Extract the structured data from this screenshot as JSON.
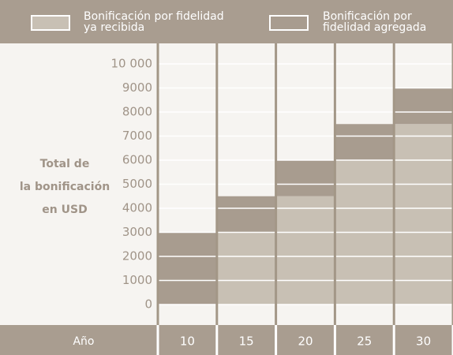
{
  "chart_data": {
    "type": "stacked_bar",
    "y_label": [
      "Total de",
      "la bonificación",
      "en USD"
    ],
    "x_label": "Año",
    "categories": [
      "10",
      "15",
      "20",
      "25",
      "30"
    ],
    "series": [
      {
        "name": "Bonificación por fidelidad ya recibida",
        "color": "#c8c0b4",
        "values": [
          0,
          3000,
          4500,
          6000,
          7500
        ]
      },
      {
        "name": "Bonificación por fidelidad agregada",
        "color": "#a89c8f",
        "values": [
          3000,
          1500,
          1500,
          1500,
          1500
        ]
      }
    ],
    "ylim": [
      0,
      10000
    ],
    "yticks": [
      0,
      1000,
      2000,
      3000,
      4000,
      5000,
      6000,
      7000,
      8000,
      9000,
      {
        "value": 10000,
        "label": "10 000"
      }
    ],
    "grid": true
  }
}
